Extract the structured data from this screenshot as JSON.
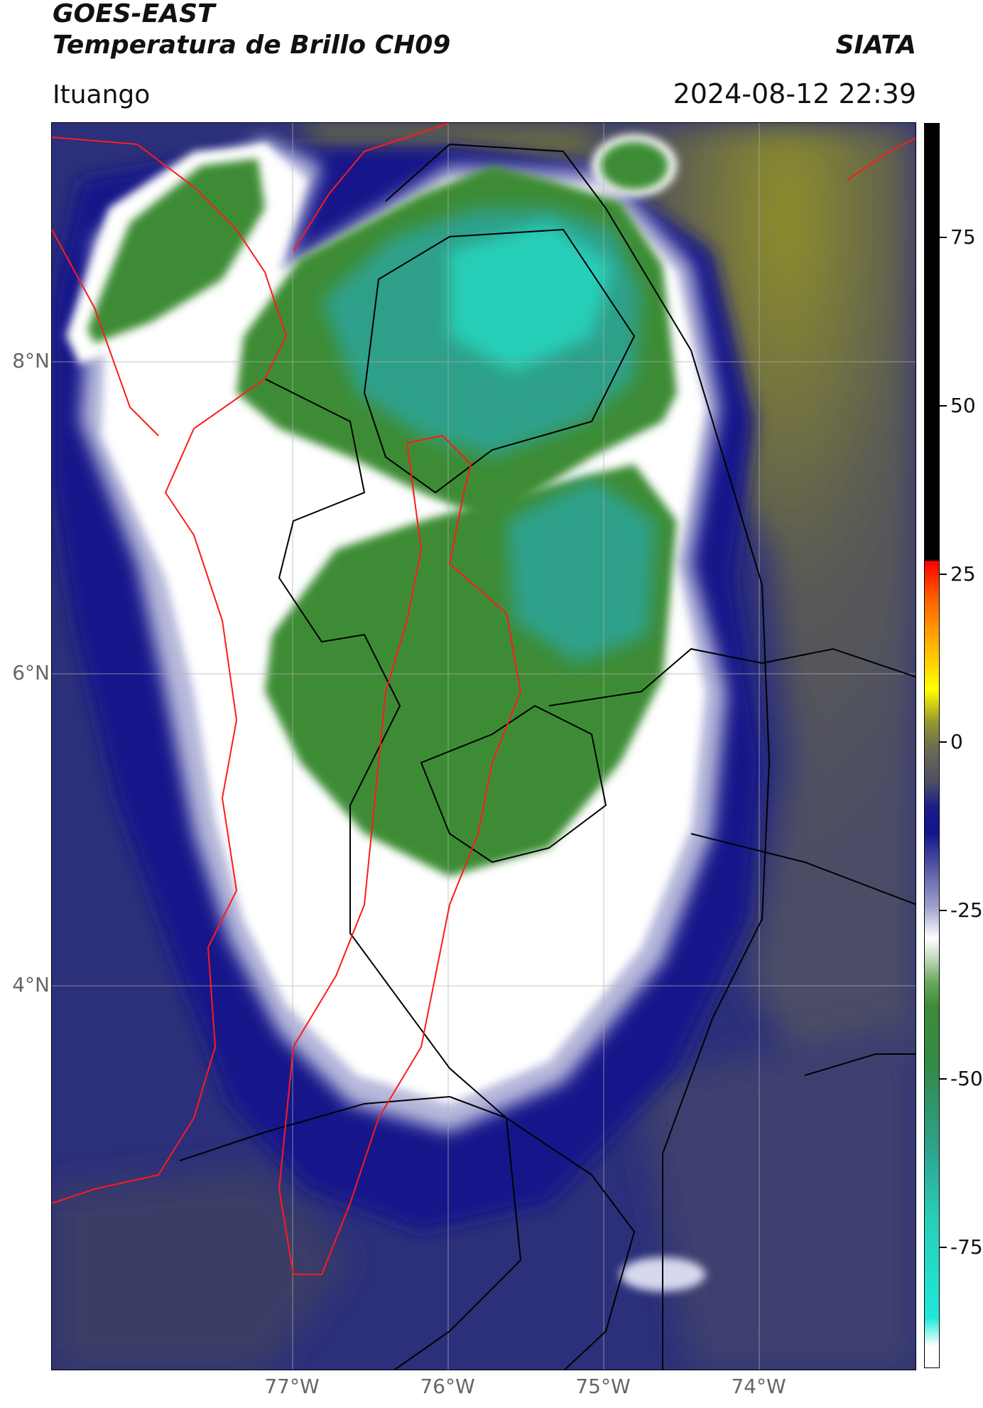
{
  "header": {
    "satellite": "GOES-EAST",
    "product": "Temperatura de Brillo CH09",
    "credit": "SIATA",
    "location": "Ituango",
    "datetime": "2024-08-12 22:39"
  },
  "map": {
    "lat_labels": [
      "8°N",
      "6°N",
      "4°N"
    ],
    "lon_labels": [
      "77°W",
      "76°W",
      "75°W",
      "74°W"
    ],
    "colors": {
      "deep_cold": "#27cfb8",
      "cold_green": "#3c8c36",
      "white": "#ffffff",
      "navy": "#1a1c8a",
      "gray": "#4c4d66",
      "olive": "#8e8f2a",
      "border_red": "#ff1a1a",
      "border_black": "#000000"
    }
  },
  "colorbar": {
    "ticks": [
      "75",
      "50",
      "25",
      "0",
      "-25",
      "-50",
      "-75"
    ],
    "tick_values": [
      75,
      50,
      25,
      0,
      -25,
      -50,
      -75
    ],
    "range": [
      -93,
      92
    ]
  }
}
